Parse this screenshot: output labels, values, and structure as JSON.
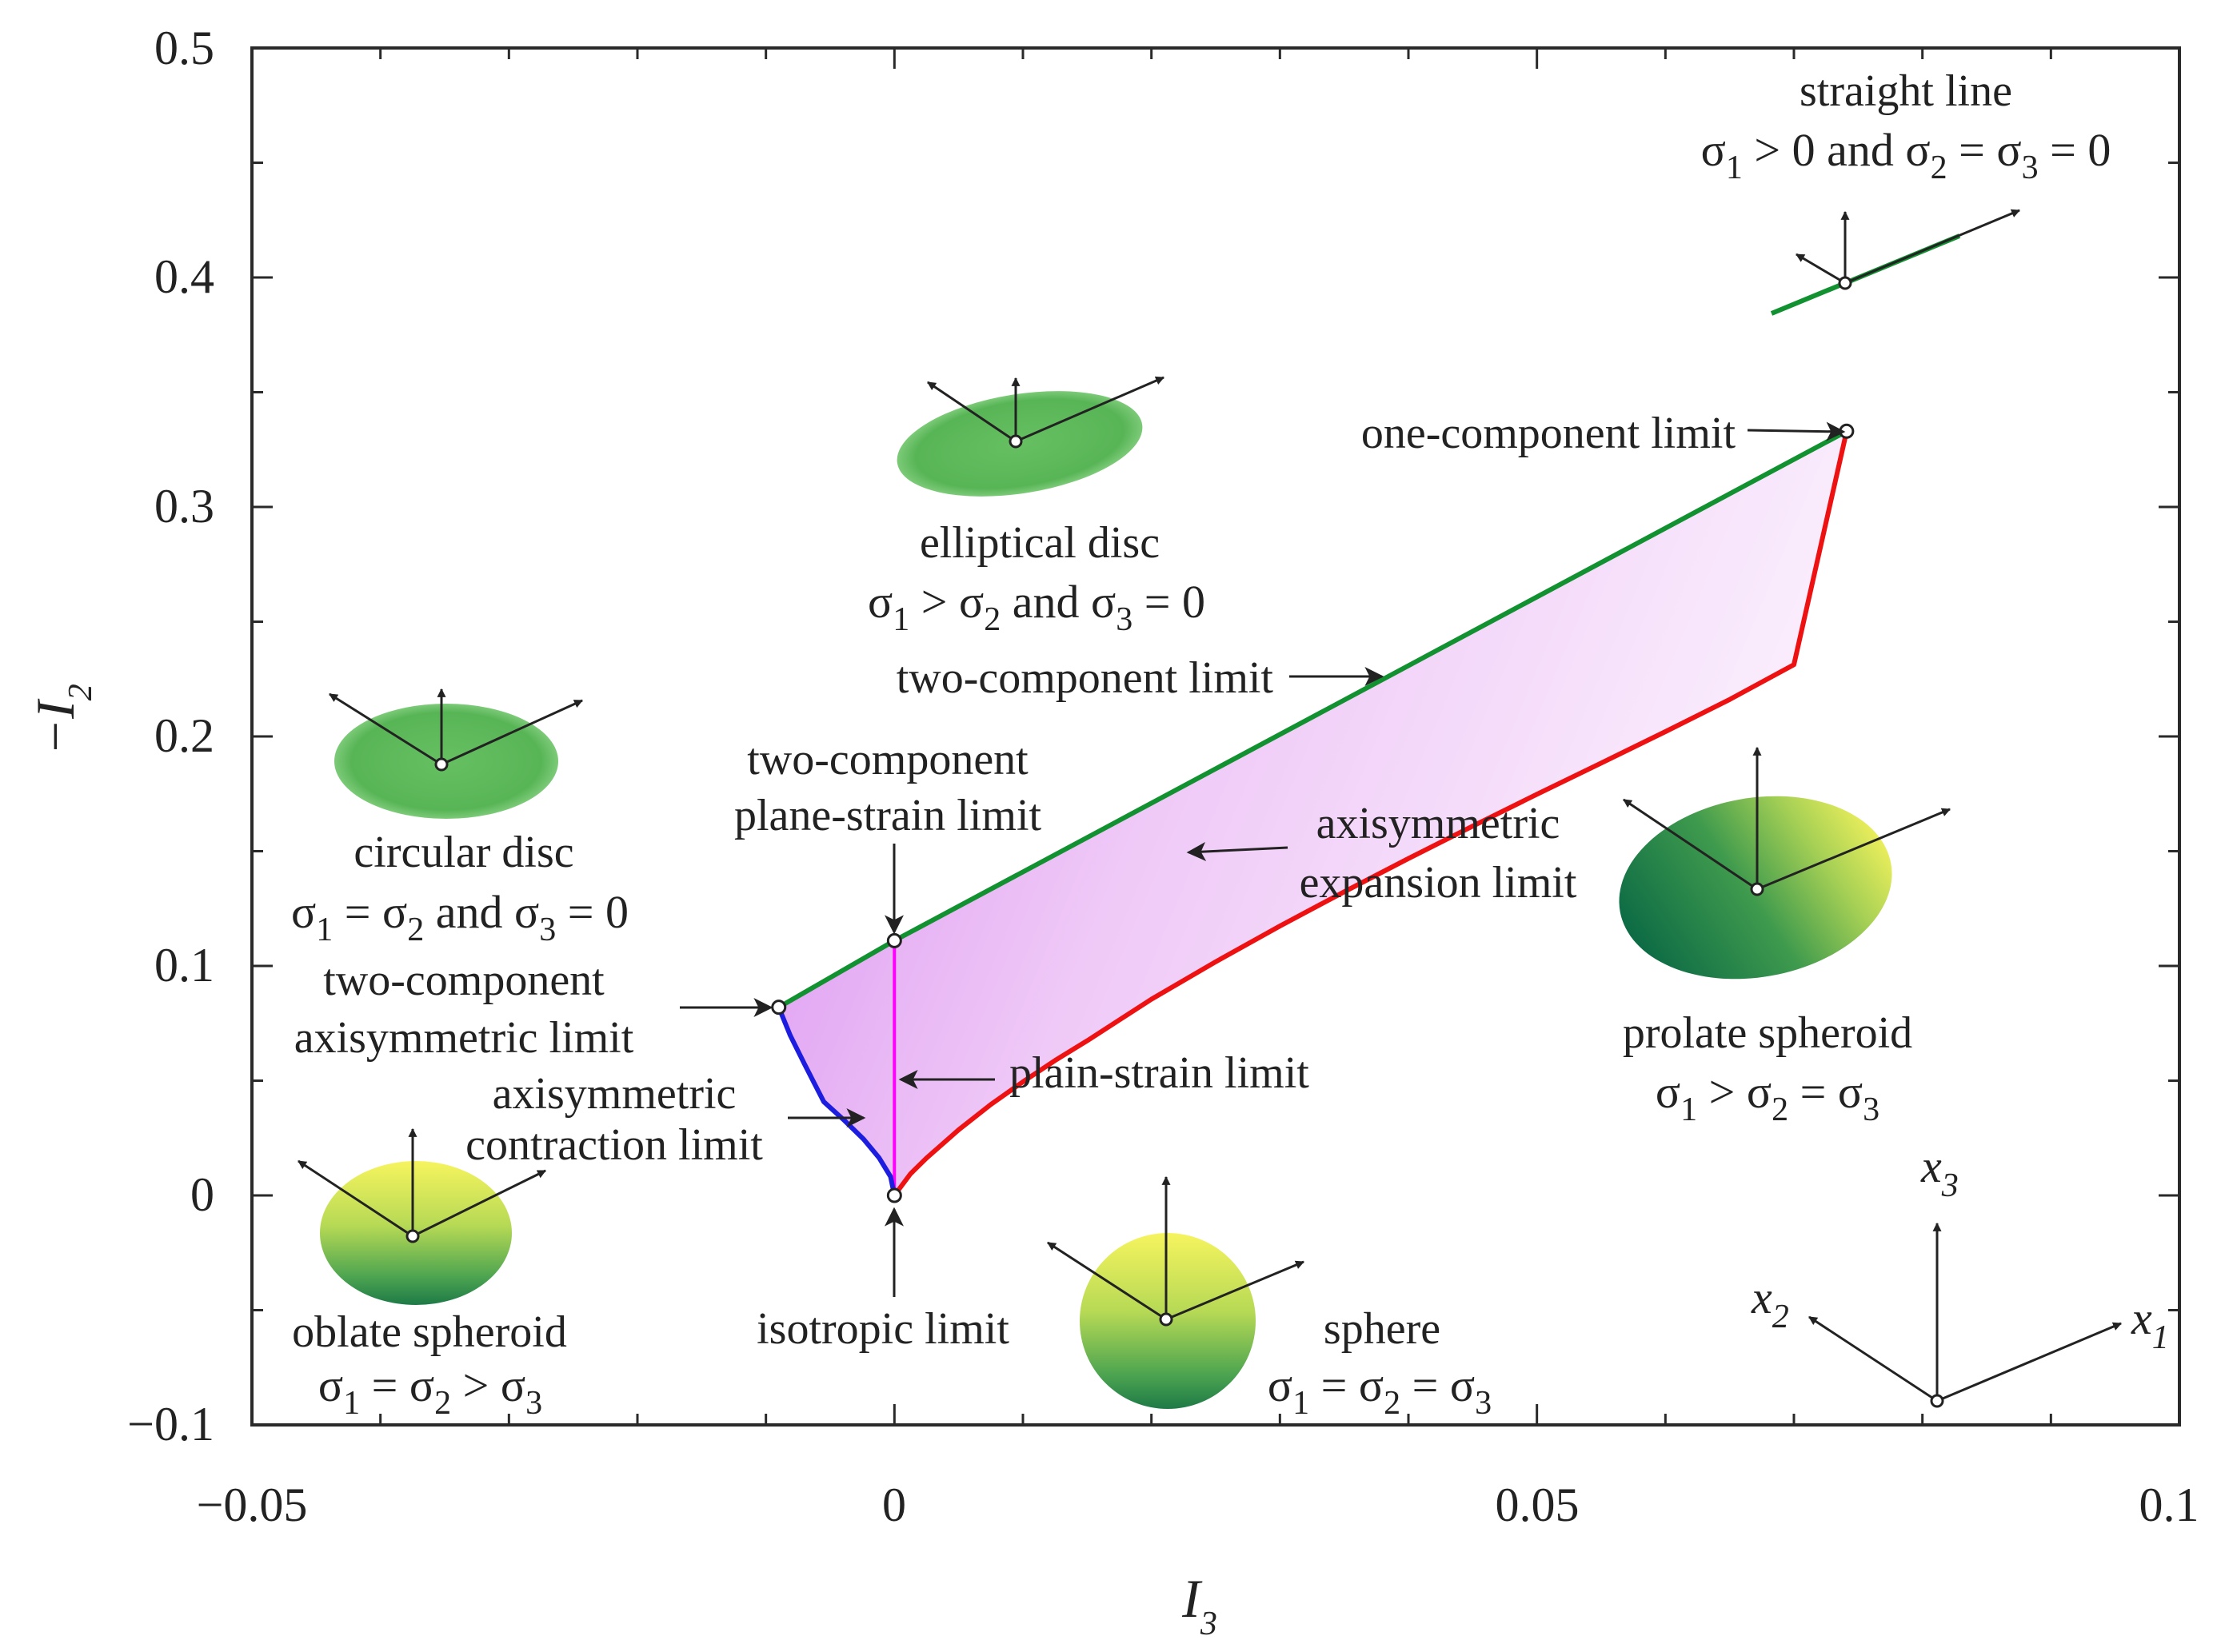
{
  "chart_data": {
    "type": "line",
    "title": "",
    "xlabel": {
      "var": "I",
      "sub": "3"
    },
    "ylabel": {
      "var": "−I",
      "sub": "2"
    },
    "xlim": [
      -0.05,
      0.1
    ],
    "ylim": [
      -0.1,
      0.5
    ],
    "x_ticks": [
      {
        "v": -0.05,
        "label": "−0.05"
      },
      {
        "v": 0,
        "label": "0"
      },
      {
        "v": 0.05,
        "label": "0.05"
      },
      {
        "v": 0.1,
        "label": "0.1"
      }
    ],
    "y_ticks": [
      {
        "v": -0.1,
        "label": "−0.1"
      },
      {
        "v": 0,
        "label": "0"
      },
      {
        "v": 0.1,
        "label": "0.1"
      },
      {
        "v": 0.2,
        "label": "0.2"
      },
      {
        "v": 0.3,
        "label": "0.3"
      },
      {
        "v": 0.4,
        "label": "0.4"
      },
      {
        "v": 0.5,
        "label": "0.5"
      }
    ],
    "x_minor_step": 0.01,
    "y_minor_step": 0.05,
    "grid": false,
    "colors": {
      "two_component": "#119130",
      "axisym_expansion": "#ee1111",
      "axisym_contraction": "#1d1de0",
      "plane_strain": "#ff00ff",
      "fill": "#e9b8f3",
      "disc": "#5cb85a",
      "spheroid_light": "#f2f25a",
      "spheroid_dark": "#0d6e45",
      "arrow": "#222222"
    },
    "series": [
      {
        "name": "two-component limit",
        "color_key": "two_component",
        "points": [
          [
            -0.009,
            0.082
          ],
          [
            0.0,
            0.111
          ],
          [
            0.0741,
            0.333
          ]
        ]
      },
      {
        "name": "axisymmetric expansion limit",
        "color_key": "axisym_expansion",
        "points": [
          [
            0,
            0
          ],
          [
            0.00125,
            0.0094
          ],
          [
            0.0025,
            0.0163
          ],
          [
            0.005,
            0.0286
          ],
          [
            0.0075,
            0.0396
          ],
          [
            0.01,
            0.0495
          ],
          [
            0.0125,
            0.0588
          ],
          [
            0.015,
            0.0674
          ],
          [
            0.02,
            0.0855
          ],
          [
            0.025,
            0.1018
          ],
          [
            0.03,
            0.1174
          ],
          [
            0.035,
            0.1323
          ],
          [
            0.04,
            0.1468
          ],
          [
            0.045,
            0.1609
          ],
          [
            0.05,
            0.1748
          ],
          [
            0.055,
            0.1884
          ],
          [
            0.06,
            0.2021
          ],
          [
            0.065,
            0.2161
          ],
          [
            0.07,
            0.2313
          ],
          [
            0.0741,
            0.333
          ]
        ]
      },
      {
        "name": "axisymmetric contraction limit",
        "color_key": "axisym_contraction",
        "points": [
          [
            0,
            0
          ],
          [
            -0.0003,
            0.0082
          ],
          [
            -0.0012,
            0.0164
          ],
          [
            -0.0024,
            0.0245
          ],
          [
            -0.0039,
            0.0327
          ],
          [
            -0.0055,
            0.0408
          ],
          [
            -0.007,
            0.0572
          ],
          [
            -0.0081,
            0.0696
          ],
          [
            -0.009,
            0.082
          ]
        ]
      },
      {
        "name": "plain-strain limit",
        "color_key": "plane_strain",
        "points": [
          [
            0,
            0
          ],
          [
            0,
            0.111
          ]
        ]
      }
    ],
    "special_points": [
      {
        "name": "isotropic limit",
        "x": 0,
        "y": 0
      },
      {
        "name": "two-component axisymmetric limit",
        "x": -0.009,
        "y": 0.082
      },
      {
        "name": "two-component plane-strain limit",
        "x": 0,
        "y": 0.111
      },
      {
        "name": "one-component limit",
        "x": 0.0741,
        "y": 0.333
      }
    ],
    "annotations": {
      "straight_line": {
        "name": "straight line",
        "cond": [
          "σ",
          "1",
          " > 0 and ",
          "σ",
          "2",
          " = ",
          "σ",
          "3",
          " = 0"
        ]
      },
      "elliptical_disc": {
        "name": "elliptical disc",
        "cond": [
          "σ",
          "1",
          " > ",
          "σ",
          "2",
          " and ",
          "σ",
          "3",
          " = 0"
        ]
      },
      "circular_disc": {
        "name": "circular disc",
        "cond": [
          "σ",
          "1",
          " = ",
          "σ",
          "2",
          " and ",
          "σ",
          "3",
          " = 0"
        ]
      },
      "prolate_spheroid": {
        "name": "prolate spheroid",
        "cond": [
          "σ",
          "1",
          " > ",
          "σ",
          "2",
          " = ",
          "σ",
          "3",
          ""
        ]
      },
      "oblate_spheroid": {
        "name": "oblate spheroid",
        "cond": [
          "σ",
          "1",
          " = ",
          "σ",
          "2",
          " > ",
          "σ",
          "3",
          ""
        ]
      },
      "sphere": {
        "name": "sphere",
        "cond": [
          "σ",
          "1",
          " = ",
          "σ",
          "2",
          " = ",
          "σ",
          "3",
          ""
        ]
      },
      "one_component": "one-component limit",
      "two_component": "two-component limit",
      "axisym_expansion": [
        "axisymmetric",
        "expansion limit"
      ],
      "tc_plane_strain": [
        "two-component",
        "plane-strain limit"
      ],
      "tc_axisym": [
        "two-component",
        "axisymmetric limit"
      ],
      "axisym_contraction": [
        "axisymmetric",
        "contraction limit"
      ],
      "plain_strain": "plain-strain limit",
      "isotropic": "isotropic limit"
    },
    "coord_axes": [
      {
        "var": "x",
        "sub": "3"
      },
      {
        "var": "x",
        "sub": "2"
      },
      {
        "var": "x",
        "sub": "1"
      }
    ]
  }
}
